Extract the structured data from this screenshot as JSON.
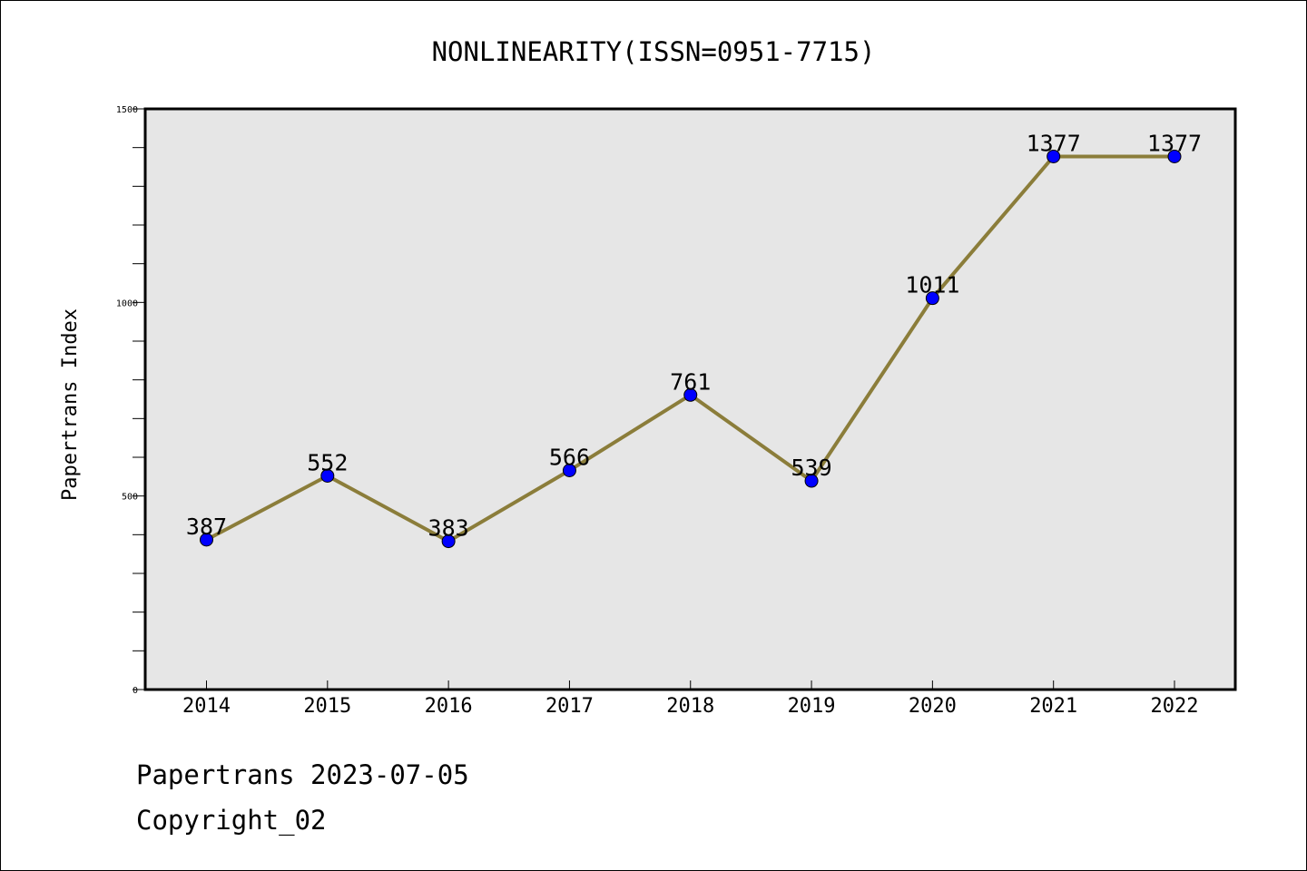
{
  "chart_data": {
    "type": "line",
    "title": "NONLINEARITY(ISSN=0951-7715)",
    "xlabel": "",
    "ylabel": "Papertrans Index",
    "x": [
      "2014",
      "2015",
      "2016",
      "2017",
      "2018",
      "2019",
      "2020",
      "2021",
      "2022"
    ],
    "series": [
      {
        "values": [
          387,
          552,
          383,
          566,
          761,
          539,
          1011,
          1377,
          1377
        ]
      }
    ],
    "data_labels": [
      "387",
      "552",
      "383",
      "566",
      "761",
      "539",
      "1011",
      "1377",
      "1377"
    ],
    "ylim": [
      0,
      1500
    ],
    "yticks": [
      0,
      500,
      1000,
      1500
    ],
    "ytick_labels": [
      "0",
      "500",
      "1000",
      "1500"
    ],
    "grid": false,
    "colors": {
      "line": "#8b7d3a",
      "marker": "#0000ff",
      "plot_background": "#e6e6e6"
    }
  },
  "footer": {
    "line1": "Papertrans 2023-07-05",
    "line2": "Copyright_02"
  }
}
